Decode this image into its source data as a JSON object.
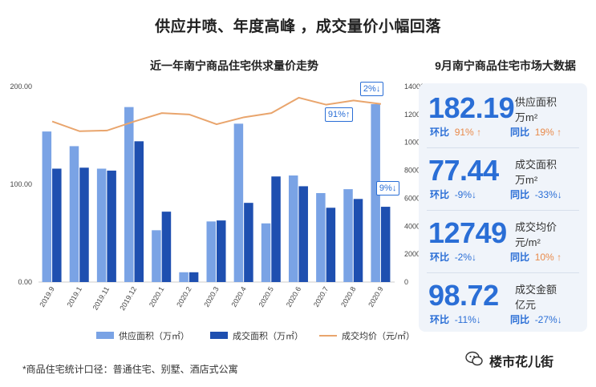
{
  "title": "供应井喷、年度高峰 ，成交量价小幅回落",
  "chart_data": {
    "type": "bar",
    "subtitle": "近一年南宁商品住宅供求量价走势",
    "categories": [
      "2019.9",
      "2019.1",
      "2019.11",
      "2019.12",
      "2020.1",
      "2020.2",
      "2020.3",
      "2020.4",
      "2020.5",
      "2020.6",
      "2020.7",
      "2020.8",
      "2020.9"
    ],
    "series": [
      {
        "name": "供应面积（万㎡）",
        "type": "bar",
        "axis": "left",
        "color": "#7aa3e5",
        "values": [
          154,
          139,
          116,
          179,
          53,
          10,
          62,
          162,
          60,
          109,
          91,
          95,
          182
        ]
      },
      {
        "name": "成交面积（万㎡）",
        "type": "bar",
        "axis": "left",
        "color": "#1e4fb0",
        "values": [
          116,
          117,
          114,
          144,
          72,
          10,
          63,
          81,
          108,
          98,
          76,
          85,
          77
        ]
      },
      {
        "name": "成交均价（元/㎡）",
        "type": "line",
        "axis": "right",
        "color": "#e9a56d",
        "values": [
          11500,
          10800,
          10850,
          11500,
          12100,
          12000,
          11300,
          11800,
          12100,
          13200,
          12700,
          13000,
          12749
        ]
      }
    ],
    "y_left": {
      "min": 0,
      "max": 200,
      "ticks": [
        "0.00",
        "100.00",
        "200.00"
      ]
    },
    "y_right": {
      "min": 0,
      "max": 14000,
      "ticks": [
        "0",
        "2000",
        "4000",
        "6000",
        "8000",
        "10000",
        "12000",
        "14000"
      ]
    },
    "legend_position": "bottom",
    "callouts": [
      {
        "text": "2%↓",
        "category": "2020.9"
      },
      {
        "text": "91%↑",
        "category": "2020.9"
      },
      {
        "text": "9%↓",
        "category": "2020.9"
      }
    ]
  },
  "side": {
    "title": "9月南宁商品住宅市场大数据",
    "stats": [
      {
        "value": "182.19",
        "label": "供应面积",
        "unit": "万m²",
        "mom_label": "环比",
        "mom": "91%",
        "mom_dir": "↑",
        "yoy_label": "同比",
        "yoy": "19%",
        "yoy_dir": "↑",
        "mom_class": "up",
        "yoy_class": "up"
      },
      {
        "value": "77.44",
        "label": "成交面积",
        "unit": "万m²",
        "mom_label": "环比",
        "mom": "-9%",
        "mom_dir": "↓",
        "yoy_label": "同比",
        "yoy": "-33%",
        "yoy_dir": "↓",
        "mom_class": "down",
        "yoy_class": "down"
      },
      {
        "value": "12749",
        "label": "成交均价",
        "unit": "元/m²",
        "mom_label": "环比",
        "mom": "-2%",
        "mom_dir": "↓",
        "yoy_label": "同比",
        "yoy": "10%",
        "yoy_dir": "↑",
        "mom_class": "down",
        "yoy_class": "up"
      },
      {
        "value": "98.72",
        "label": "成交金额",
        "unit": "亿元",
        "mom_label": "环比",
        "mom": "-11%",
        "mom_dir": "↓",
        "yoy_label": "同比",
        "yoy": "-27%",
        "yoy_dir": "↓",
        "mom_class": "down",
        "yoy_class": "down"
      }
    ]
  },
  "footer": "*商品住宅统计口径：普通住宅、别墅、酒店式公寓",
  "brand": "楼市花儿街"
}
